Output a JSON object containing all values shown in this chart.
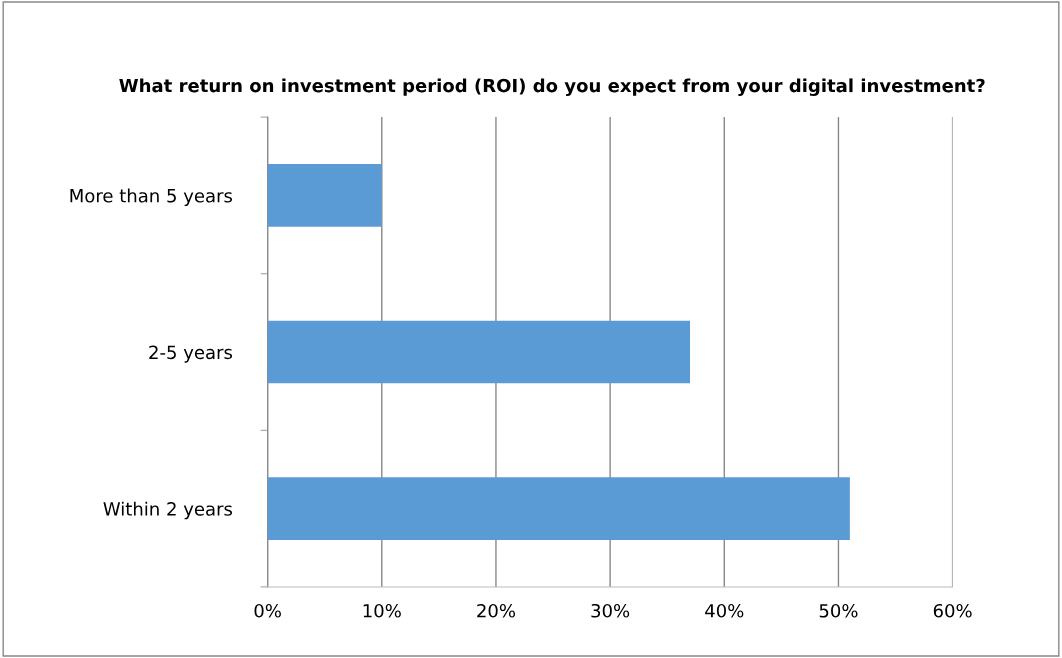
{
  "chart_data": {
    "type": "bar",
    "orientation": "horizontal",
    "title": "What return on investment period (ROI) do you expect from your digital investment?",
    "categories": [
      "More than 5 years",
      "2-5 years",
      "Within 2 years"
    ],
    "series": [
      {
        "color": "#5b9bd5",
        "values": [
          10,
          37,
          51
        ]
      }
    ],
    "xlim": [
      0,
      60
    ],
    "xticks": [
      {
        "value": 0,
        "label": "0%"
      },
      {
        "value": 10,
        "label": "10%"
      },
      {
        "value": 20,
        "label": "20%"
      },
      {
        "value": 30,
        "label": "30%"
      },
      {
        "value": 40,
        "label": "40%"
      },
      {
        "value": 50,
        "label": "50%"
      },
      {
        "value": 60,
        "label": "60%"
      }
    ],
    "grid": "x"
  }
}
